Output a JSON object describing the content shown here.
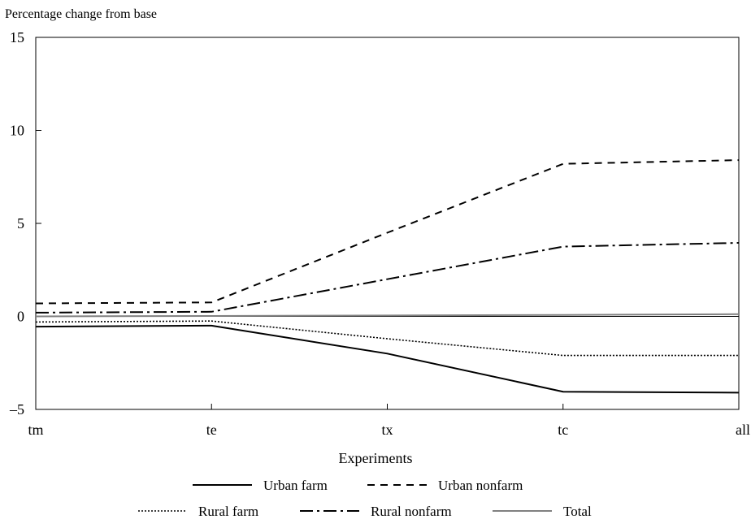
{
  "chart_data": {
    "type": "line",
    "title": "",
    "ylabel": "Percentage change from base",
    "xlabel": "Experiments",
    "categories": [
      "tm",
      "te",
      "tx",
      "tc",
      "all"
    ],
    "ylim": [
      -5,
      15
    ],
    "yticks": [
      -5,
      0,
      5,
      10,
      15
    ],
    "ytick_labels": [
      "–5",
      "0",
      "5",
      "10",
      "15"
    ],
    "zero_line": true,
    "grid": false,
    "legend_position": "bottom",
    "series": [
      {
        "name": "Urban farm",
        "values": [
          -0.55,
          -0.5,
          -2.0,
          -4.05,
          -4.1
        ],
        "color": "#000000",
        "dash": "solid"
      },
      {
        "name": "Urban nonfarm",
        "values": [
          0.7,
          0.75,
          4.5,
          8.2,
          8.4
        ],
        "color": "#000000",
        "dash": "dashed"
      },
      {
        "name": "Rural farm",
        "values": [
          -0.3,
          -0.25,
          -1.2,
          -2.1,
          -2.1
        ],
        "color": "#000000",
        "dash": "dotted"
      },
      {
        "name": "Rural nonfarm",
        "values": [
          0.2,
          0.25,
          2.0,
          3.75,
          3.95
        ],
        "color": "#000000",
        "dash": "dashdot"
      },
      {
        "name": "Total",
        "values": [
          0.0,
          0.02,
          0.05,
          0.08,
          0.12
        ],
        "color": "#808080",
        "dash": "solid"
      }
    ]
  }
}
